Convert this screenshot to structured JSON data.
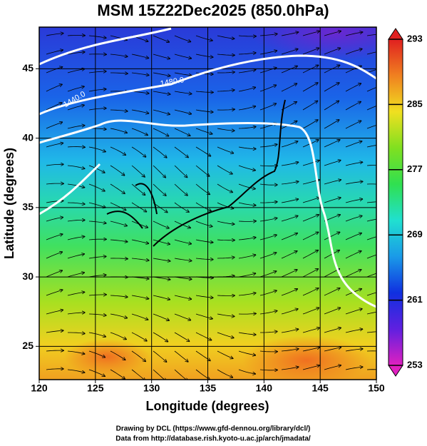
{
  "chart_data": {
    "type": "map",
    "title": "MSM 15Z22Dec2025 (850.0hPa)",
    "xlabel": "Longitude (degrees)",
    "ylabel": "Latitude  (degrees)",
    "xlim": [
      120,
      150
    ],
    "ylim": [
      22.6,
      48.0
    ],
    "xticks": [
      120,
      125,
      130,
      135,
      140,
      145,
      150
    ],
    "yticks": [
      25,
      30,
      35,
      40,
      45
    ],
    "grid": true,
    "contour_labels": [
      "1440.0",
      "1480.0"
    ],
    "colorbar": {
      "lim": [
        253,
        293
      ],
      "ticks": [
        253,
        261,
        269,
        277,
        285,
        293
      ],
      "colors": [
        "#e020c0",
        "#6020e0",
        "#1030e0",
        "#1a9ae8",
        "#20e0d0",
        "#30e050",
        "#80e020",
        "#f0e020",
        "#f08020",
        "#e02020"
      ]
    },
    "footer": [
      "Drawing by DCL (https://www.gfd-dennou.org/library/dcl/)",
      "Data from http://database.rish.kyoto-u.ac.jp/arch/jmadata/"
    ]
  }
}
